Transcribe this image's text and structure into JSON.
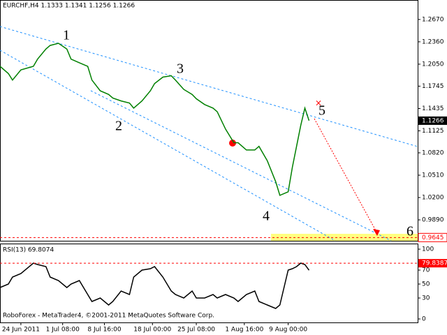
{
  "chart_data": [
    {
      "type": "line",
      "title": "EURCHF,H4  1.1333 1.1341 1.1256 1.1266",
      "x": [
        0,
        2,
        3,
        5,
        8,
        9,
        11,
        12,
        14,
        16,
        17,
        19,
        21,
        22,
        24,
        26,
        27,
        29,
        31,
        32,
        34,
        36,
        37,
        39,
        41,
        42,
        44,
        46,
        47,
        49,
        51,
        52,
        54,
        56,
        57,
        59,
        61,
        62,
        64,
        66,
        67,
        69,
        70,
        71,
        72,
        73,
        74
      ],
      "values": [
        1.202,
        1.192,
        1.183,
        1.197,
        1.202,
        1.212,
        1.226,
        1.231,
        1.234,
        1.226,
        1.212,
        1.207,
        1.202,
        1.183,
        1.168,
        1.163,
        1.158,
        1.154,
        1.151,
        1.144,
        1.154,
        1.168,
        1.178,
        1.187,
        1.189,
        1.183,
        1.17,
        1.163,
        1.157,
        1.149,
        1.144,
        1.139,
        1.115,
        1.096,
        1.096,
        1.086,
        1.086,
        1.091,
        1.071,
        1.042,
        1.023,
        1.028,
        1.062,
        1.091,
        1.12,
        1.144,
        1.1266
      ],
      "color": "#008000",
      "xlim": [
        0,
        100
      ],
      "ylim": [
        0.96,
        1.294
      ],
      "yticks": [
        {
          "value": 1.267,
          "label": "1.2670"
        },
        {
          "value": 1.236,
          "label": "1.2360"
        },
        {
          "value": 1.205,
          "label": "1.2050"
        },
        {
          "value": 1.1745,
          "label": "1.1745"
        },
        {
          "value": 1.1435,
          "label": "1.1435"
        },
        {
          "value": 1.1125,
          "label": "1.1125"
        },
        {
          "value": 1.082,
          "label": "1.0820"
        },
        {
          "value": 1.051,
          "label": "1.0510"
        },
        {
          "value": 1.02,
          "label": "1.0200"
        },
        {
          "value": 0.989,
          "label": "0.9890"
        }
      ],
      "current_price": 1.1266,
      "target_price": 0.9645,
      "wave_labels": [
        "1",
        "2",
        "3",
        "4",
        "5",
        "6"
      ]
    },
    {
      "type": "line",
      "title": "RSI(13) 69.8074",
      "x": [
        0,
        2,
        3,
        5,
        8,
        9,
        11,
        12,
        14,
        16,
        17,
        19,
        21,
        22,
        24,
        26,
        27,
        29,
        31,
        32,
        34,
        36,
        37,
        39,
        41,
        42,
        44,
        46,
        47,
        49,
        51,
        52,
        54,
        56,
        57,
        59,
        61,
        62,
        64,
        66,
        67,
        69,
        70,
        71,
        72,
        73,
        74
      ],
      "values": [
        45,
        50,
        60,
        65,
        80,
        78,
        75,
        60,
        55,
        45,
        50,
        55,
        35,
        25,
        30,
        20,
        25,
        40,
        35,
        60,
        70,
        72,
        75,
        60,
        40,
        35,
        30,
        40,
        30,
        30,
        35,
        30,
        35,
        30,
        25,
        35,
        40,
        25,
        20,
        15,
        20,
        70,
        72,
        75,
        80,
        78,
        69.8074
      ],
      "color": "#000000",
      "xlim": [
        0,
        100
      ],
      "ylim": [
        0,
        100
      ],
      "yticks": [
        100,
        70,
        50,
        30,
        0
      ],
      "level": 79.8387,
      "xticks": [
        {
          "value": 5,
          "label": "24 Jun 2011"
        },
        {
          "value": 15,
          "label": "1 Jul 08:00"
        },
        {
          "value": 25,
          "label": "8 Jul 16:00"
        },
        {
          "value": 36.5,
          "label": "18 Jul 00:00"
        },
        {
          "value": 47,
          "label": "25 Jul 08:00"
        },
        {
          "value": 58.5,
          "label": "1 Aug 16:00"
        },
        {
          "value": 69,
          "label": "9 Aug 00:00"
        }
      ],
      "source": "RoboForex - MetaTrader4, ©2001-2011 MetaQuotes Software Corp."
    }
  ]
}
